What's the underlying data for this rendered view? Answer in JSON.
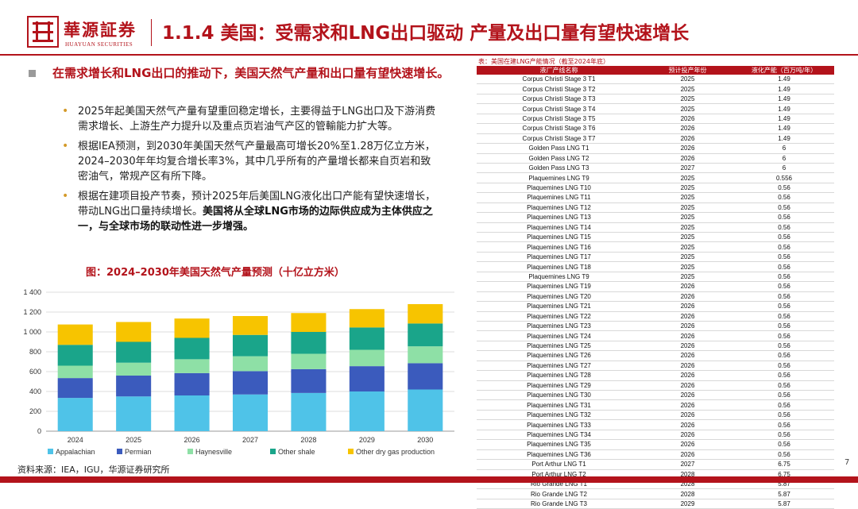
{
  "header": {
    "logo_cn": "華源証券",
    "logo_en": "HUAYUAN SECURITIES",
    "title": "1.1.4 美国：受需求和LNG出口驱动 产量及出口量有望快速增长"
  },
  "lead_text": "在需求增长和LNG出口的推动下，美国天然气产量和出口量有望快速增长。",
  "bullets": [
    {
      "text": "2025年起美国天然气产量有望重回稳定增长，主要得益于LNG出口及下游消费需求增长、上游生产力提升以及重点页岩油气产区的管輸能力扩大等。",
      "bold": ""
    },
    {
      "text": "根据IEA预测，到2030年美国天然气产量最高可增长20%至1.28万亿立方米，2024–2030年年均复合增长率3%，其中几乎所有的产量增长都来自页岩和致密油气，常规产区有所下降。",
      "bold": ""
    },
    {
      "text": "根据在建项目投产节奏，预计2025年后美国LNG液化出口产能有望快速增长，带动LNG出口量持续增长。",
      "bold": "美国将从全球LNG市场的边际供应成为主体供应之一，与全球市场的联动性进一步增强。"
    }
  ],
  "chart_title": "图：2024–2030年美国天然气产量预测（十亿立方米）",
  "source": "资料来源：IEA，IGU，华源证券研究所",
  "page_number": "7",
  "chart_data": {
    "type": "bar",
    "stacked": true,
    "categories": [
      "2024",
      "2025",
      "2026",
      "2027",
      "2028",
      "2029",
      "2030"
    ],
    "ylim": [
      0,
      1400
    ],
    "yticks": [
      "0",
      "200",
      "400",
      "600",
      "800",
      "1 000",
      "1 200",
      "1 400"
    ],
    "series": [
      {
        "name": "Appalachian",
        "color": "#4fc3e8",
        "values": [
          335,
          350,
          360,
          370,
          385,
          400,
          420
        ]
      },
      {
        "name": "Permian",
        "color": "#3b5bbd",
        "values": [
          200,
          210,
          225,
          235,
          240,
          255,
          265
        ]
      },
      {
        "name": "Haynesville",
        "color": "#8ee0a6",
        "values": [
          125,
          130,
          140,
          150,
          155,
          165,
          170
        ]
      },
      {
        "name": "Other shale",
        "color": "#1aa58a",
        "values": [
          210,
          210,
          215,
          215,
          220,
          225,
          230
        ]
      },
      {
        "name": "Other dry gas production",
        "color": "#f7c400",
        "values": [
          205,
          200,
          195,
          190,
          190,
          185,
          195
        ]
      }
    ]
  },
  "table": {
    "caption": "表：美国在建LNG产能情况（截至2024年底）",
    "headers": [
      "液厂产线名称",
      "预计投产年份",
      "液化产能（百万吨/年）"
    ],
    "rows": [
      [
        "Corpus Christi Stage 3 T1",
        "2025",
        "1.49"
      ],
      [
        "Corpus Christi Stage 3 T2",
        "2025",
        "1.49"
      ],
      [
        "Corpus Christi Stage 3 T3",
        "2025",
        "1.49"
      ],
      [
        "Corpus Christi Stage 3 T4",
        "2025",
        "1.49"
      ],
      [
        "Corpus Christi Stage 3 T5",
        "2026",
        "1.49"
      ],
      [
        "Corpus Christi Stage 3 T6",
        "2026",
        "1.49"
      ],
      [
        "Corpus Christi Stage 3 T7",
        "2026",
        "1.49"
      ],
      [
        "Golden Pass LNG T1",
        "2026",
        "6"
      ],
      [
        "Golden Pass LNG T2",
        "2026",
        "6"
      ],
      [
        "Golden Pass LNG T3",
        "2027",
        "6"
      ],
      [
        "Plaquemines LNG T9",
        "2025",
        "0.556"
      ],
      [
        "Plaquemines LNG T10",
        "2025",
        "0.56"
      ],
      [
        "Plaquemines LNG T11",
        "2025",
        "0.56"
      ],
      [
        "Plaquemines LNG T12",
        "2025",
        "0.56"
      ],
      [
        "Plaquemines LNG T13",
        "2025",
        "0.56"
      ],
      [
        "Plaquemines LNG T14",
        "2025",
        "0.56"
      ],
      [
        "Plaquemines LNG T15",
        "2025",
        "0.56"
      ],
      [
        "Plaquemines LNG T16",
        "2025",
        "0.56"
      ],
      [
        "Plaquemines LNG T17",
        "2025",
        "0.56"
      ],
      [
        "Plaquemines LNG T18",
        "2025",
        "0.56"
      ],
      [
        "Plaquemines LNG T9",
        "2025",
        "0.56"
      ],
      [
        "Plaquemines LNG T19",
        "2026",
        "0.56"
      ],
      [
        "Plaquemines LNG T20",
        "2026",
        "0.56"
      ],
      [
        "Plaquemines LNG T21",
        "2026",
        "0.56"
      ],
      [
        "Plaquemines LNG T22",
        "2026",
        "0.56"
      ],
      [
        "Plaquemines LNG T23",
        "2026",
        "0.56"
      ],
      [
        "Plaquemines LNG T24",
        "2026",
        "0.56"
      ],
      [
        "Plaquemines LNG T25",
        "2026",
        "0.56"
      ],
      [
        "Plaquemines LNG T26",
        "2026",
        "0.56"
      ],
      [
        "Plaquemines LNG T27",
        "2026",
        "0.56"
      ],
      [
        "Plaquemines LNG T28",
        "2026",
        "0.56"
      ],
      [
        "Plaquemines LNG T29",
        "2026",
        "0.56"
      ],
      [
        "Plaquemines LNG T30",
        "2026",
        "0.56"
      ],
      [
        "Plaquemines LNG T31",
        "2026",
        "0.56"
      ],
      [
        "Plaquemines LNG T32",
        "2026",
        "0.56"
      ],
      [
        "Plaquemines LNG T33",
        "2026",
        "0.56"
      ],
      [
        "Plaquemines LNG T34",
        "2026",
        "0.56"
      ],
      [
        "Plaquemines LNG T35",
        "2026",
        "0.56"
      ],
      [
        "Plaquemines LNG T36",
        "2026",
        "0.56"
      ],
      [
        "Port Arthur LNG T1",
        "2027",
        "6.75"
      ],
      [
        "Port Arthur LNG T2",
        "2028",
        "6.75"
      ],
      [
        "Rio Grande LNG T1",
        "2028",
        "5.87"
      ],
      [
        "Rio Grande LNG T2",
        "2028",
        "5.87"
      ],
      [
        "Rio Grande LNG T3",
        "2029",
        "5.87"
      ]
    ]
  }
}
